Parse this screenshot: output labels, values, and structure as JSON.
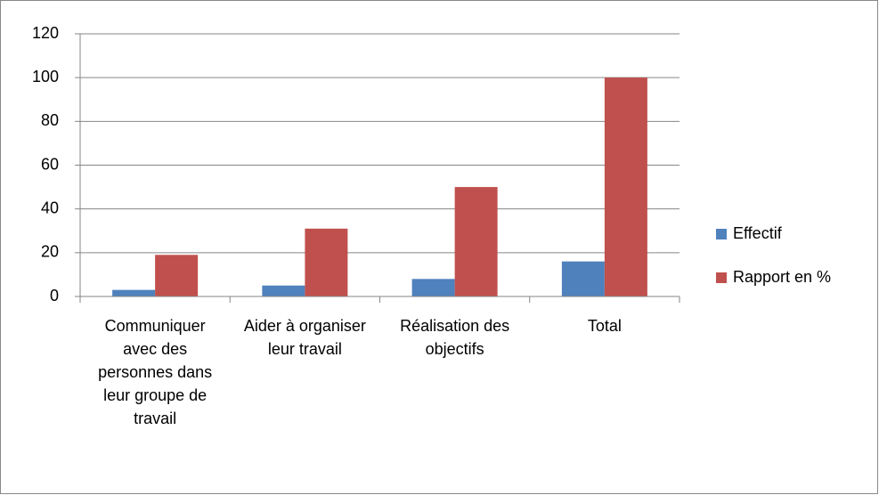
{
  "chart_data": {
    "type": "bar",
    "categories": [
      "Communiquer avec des personnes dans leur groupe de travail",
      "Aider à organiser leur travail",
      "Réalisation des objectifs",
      "Total"
    ],
    "series": [
      {
        "name": "Effectif",
        "color": "#4f81bd",
        "values": [
          3,
          5,
          8,
          16
        ]
      },
      {
        "name": "Rapport en %",
        "color": "#c0504d",
        "values": [
          19,
          31,
          50,
          100
        ]
      }
    ],
    "ylim": [
      0,
      120
    ],
    "yticks": [
      0,
      20,
      40,
      60,
      80,
      100,
      120
    ],
    "grid": true,
    "legend": "right"
  }
}
